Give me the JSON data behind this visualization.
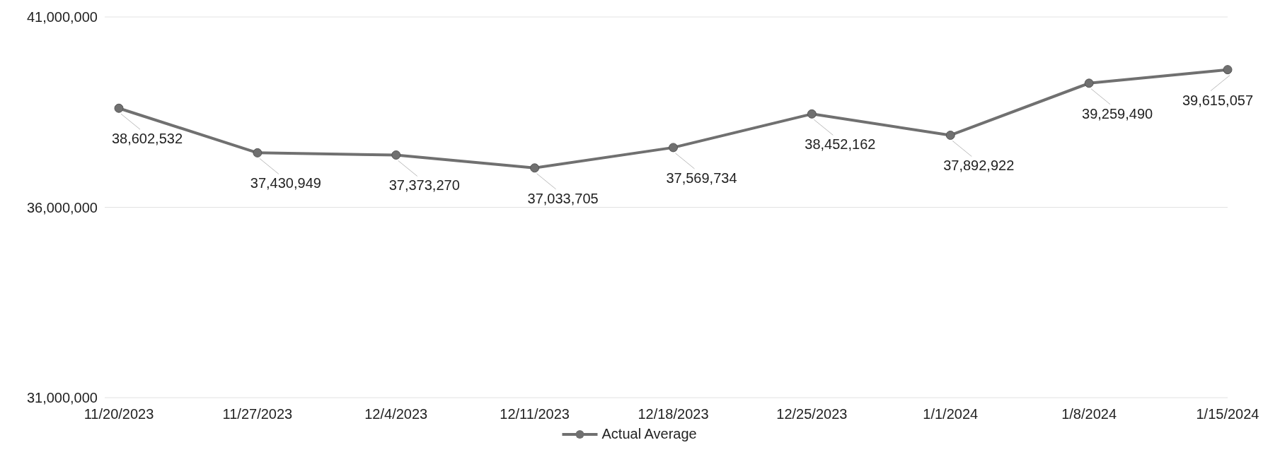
{
  "chart_data": {
    "type": "line",
    "categories": [
      "11/20/2023",
      "11/27/2023",
      "12/4/2023",
      "12/11/2023",
      "12/18/2023",
      "12/25/2023",
      "1/1/2024",
      "1/8/2024",
      "1/15/2024"
    ],
    "series": [
      {
        "name": "Actual Average",
        "color": "#707070",
        "values": [
          38602532,
          37430949,
          37373270,
          37033705,
          37569734,
          38452162,
          37892922,
          39259490,
          39615057
        ],
        "value_labels": [
          "38,602,532",
          "37,430,949",
          "37,373,270",
          "37,033,705",
          "37,569,734",
          "38,452,162",
          "37,892,922",
          "39,259,490",
          "39,615,057"
        ]
      }
    ],
    "ylim": [
      31000000,
      41000000
    ],
    "yticks": [
      {
        "value": 31000000,
        "label": "31,000,000"
      },
      {
        "value": 36000000,
        "label": "36,000,000"
      },
      {
        "value": 41000000,
        "label": "41,000,000"
      }
    ],
    "grid": "y",
    "legend": "bottom",
    "marker": "circle",
    "line_style": "solid"
  }
}
